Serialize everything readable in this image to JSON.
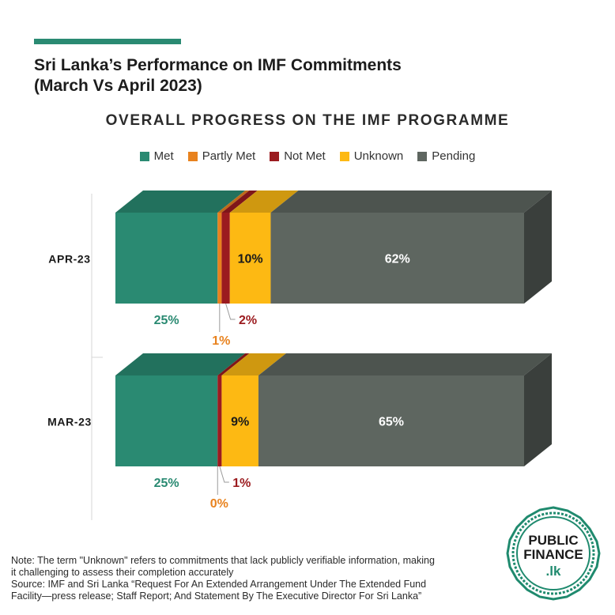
{
  "header": {
    "title_line1": "Sri Lanka’s Performance on IMF Commitments",
    "title_line2": "(March Vs April 2023)"
  },
  "colors": {
    "accent": "#2a8a72",
    "met": "#2a8a72",
    "partly_met": "#e8821e",
    "not_met": "#9b1b1f",
    "unknown": "#fdb913",
    "pending": "#5e6660",
    "brand_green": "#1f8a6e"
  },
  "chart_data": {
    "type": "bar",
    "orientation": "horizontal",
    "stacked": true,
    "title": "OVERALL PROGRESS ON THE IMF PROGRAMME",
    "legend_position": "top",
    "categories": [
      "APR-23",
      "MAR-23"
    ],
    "series": [
      {
        "name": "Met",
        "values": [
          25,
          25
        ],
        "labels": [
          "25%",
          "25%"
        ]
      },
      {
        "name": "Partly Met",
        "values": [
          1,
          0
        ],
        "labels": [
          "1%",
          "0%"
        ]
      },
      {
        "name": "Not Met",
        "values": [
          2,
          1
        ],
        "labels": [
          "2%",
          "1%"
        ]
      },
      {
        "name": "Unknown",
        "values": [
          10,
          9
        ],
        "labels": [
          "10%",
          "9%"
        ]
      },
      {
        "name": "Pending",
        "values": [
          62,
          65
        ],
        "labels": [
          "62%",
          "65%"
        ]
      }
    ],
    "xlim": [
      0,
      100
    ],
    "grid": false
  },
  "footer": {
    "note_line1": "Note: The term \"Unknown\" refers to commitments that lack publicly verifiable information, making",
    "note_line2": "it challenging to assess their completion accurately",
    "source_line1": "Source: IMF and Sri Lanka “Request For An Extended Arrangement Under The Extended Fund",
    "source_line2": "Facility—press release; Staff Report; And Statement By The Executive Director For Sri Lanka”"
  },
  "logo": {
    "line1": "PUBLIC",
    "line2": "FINANCE",
    "line3": ".lk"
  }
}
